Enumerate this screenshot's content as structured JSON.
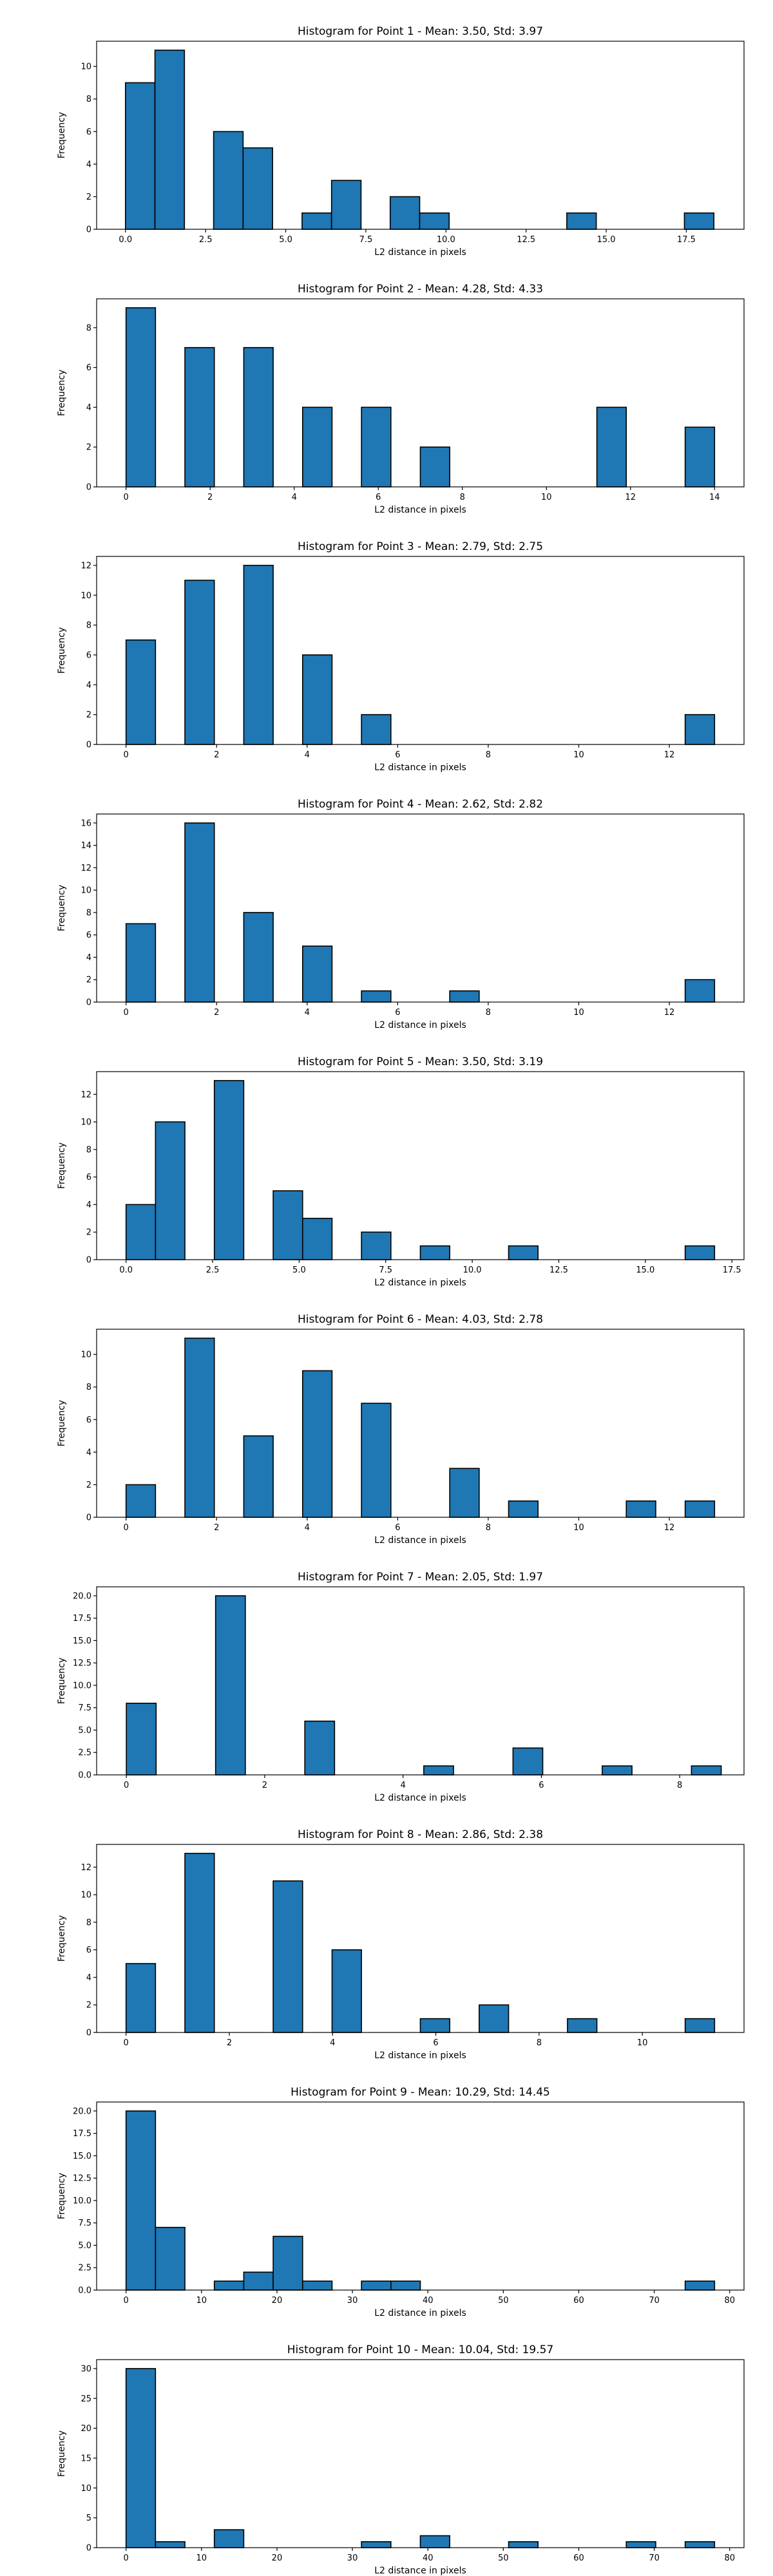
{
  "figure": {
    "background": "#ffffff",
    "bar_color": "#1f77b4",
    "edge_color": "#000000"
  },
  "chart_data": [
    {
      "type": "bar",
      "title": "Histogram for Point 1 - Mean: 3.50, Std: 3.97",
      "xlabel": "L2 distance in pixels",
      "ylabel": "Frequency",
      "xlim": [
        -0.9,
        19.3
      ],
      "ylim": [
        0,
        11.55
      ],
      "xticks": [
        0.0,
        2.5,
        5.0,
        7.5,
        10.0,
        12.5,
        15.0,
        17.5
      ],
      "xtick_labels": [
        "0.0",
        "2.5",
        "5.0",
        "7.5",
        "10.0",
        "12.5",
        "15.0",
        "17.5"
      ],
      "yticks": [
        0,
        2,
        4,
        6,
        8,
        10
      ],
      "ytick_labels": [
        "0",
        "2",
        "4",
        "6",
        "8",
        "10"
      ],
      "bins": [
        [
          0.0,
          0.92
        ],
        [
          0.92,
          1.84
        ],
        [
          2.75,
          3.67
        ],
        [
          3.67,
          4.59
        ],
        [
          5.51,
          6.43
        ],
        [
          6.43,
          7.35
        ],
        [
          8.26,
          9.18
        ],
        [
          9.18,
          10.1
        ],
        [
          13.77,
          14.69
        ],
        [
          17.44,
          18.36
        ]
      ],
      "values": [
        9,
        11,
        6,
        5,
        1,
        3,
        2,
        1,
        1,
        1
      ]
    },
    {
      "type": "bar",
      "title": "Histogram for Point 2 - Mean: 4.28, Std: 4.33",
      "xlabel": "L2 distance in pixels",
      "ylabel": "Frequency",
      "xlim": [
        -0.7,
        14.7
      ],
      "ylim": [
        0,
        9.45
      ],
      "xticks": [
        0,
        2,
        4,
        6,
        8,
        10,
        12,
        14
      ],
      "xtick_labels": [
        "0",
        "2",
        "4",
        "6",
        "8",
        "10",
        "12",
        "14"
      ],
      "yticks": [
        0,
        2,
        4,
        6,
        8
      ],
      "ytick_labels": [
        "0",
        "2",
        "4",
        "6",
        "8"
      ],
      "bins": [
        [
          0.0,
          0.7
        ],
        [
          1.4,
          2.1
        ],
        [
          2.8,
          3.5
        ],
        [
          4.2,
          4.9
        ],
        [
          5.6,
          6.3
        ],
        [
          7.0,
          7.7
        ],
        [
          11.2,
          11.9
        ],
        [
          13.3,
          14.0
        ]
      ],
      "values": [
        9,
        7,
        7,
        4,
        4,
        2,
        4,
        3
      ]
    },
    {
      "type": "bar",
      "title": "Histogram for Point 3 - Mean: 2.79, Std: 2.75",
      "xlabel": "L2 distance in pixels",
      "ylabel": "Frequency",
      "xlim": [
        -0.65,
        13.65
      ],
      "ylim": [
        0,
        12.6
      ],
      "xticks": [
        0,
        2,
        4,
        6,
        8,
        10,
        12
      ],
      "xtick_labels": [
        "0",
        "2",
        "4",
        "6",
        "8",
        "10",
        "12"
      ],
      "yticks": [
        0,
        2,
        4,
        6,
        8,
        10,
        12
      ],
      "ytick_labels": [
        "0",
        "2",
        "4",
        "6",
        "8",
        "10",
        "12"
      ],
      "bins": [
        [
          0.0,
          0.65
        ],
        [
          1.3,
          1.95
        ],
        [
          2.6,
          3.25
        ],
        [
          3.9,
          4.55
        ],
        [
          5.2,
          5.85
        ],
        [
          12.35,
          13.0
        ]
      ],
      "values": [
        7,
        11,
        12,
        6,
        2,
        2
      ]
    },
    {
      "type": "bar",
      "title": "Histogram for Point 4 - Mean: 2.62, Std: 2.82",
      "xlabel": "L2 distance in pixels",
      "ylabel": "Frequency",
      "xlim": [
        -0.65,
        13.65
      ],
      "ylim": [
        0,
        16.8
      ],
      "xticks": [
        0,
        2,
        4,
        6,
        8,
        10,
        12
      ],
      "xtick_labels": [
        "0",
        "2",
        "4",
        "6",
        "8",
        "10",
        "12"
      ],
      "yticks": [
        0,
        2,
        4,
        6,
        8,
        10,
        12,
        14,
        16
      ],
      "ytick_labels": [
        "0",
        "2",
        "4",
        "6",
        "8",
        "10",
        "12",
        "14",
        "16"
      ],
      "bins": [
        [
          0.0,
          0.65
        ],
        [
          1.3,
          1.95
        ],
        [
          2.6,
          3.25
        ],
        [
          3.9,
          4.55
        ],
        [
          5.2,
          5.85
        ],
        [
          7.15,
          7.8
        ],
        [
          12.35,
          13.0
        ]
      ],
      "values": [
        7,
        16,
        8,
        5,
        1,
        1,
        2
      ]
    },
    {
      "type": "bar",
      "title": "Histogram for Point 5 - Mean: 3.50, Std: 3.19",
      "xlabel": "L2 distance in pixels",
      "ylabel": "Frequency",
      "xlim": [
        -0.85,
        17.85
      ],
      "ylim": [
        0,
        13.65
      ],
      "xticks": [
        0.0,
        2.5,
        5.0,
        7.5,
        10.0,
        12.5,
        15.0,
        17.5
      ],
      "xtick_labels": [
        "0.0",
        "2.5",
        "5.0",
        "7.5",
        "10.0",
        "12.5",
        "15.0",
        "17.5"
      ],
      "yticks": [
        0,
        2,
        4,
        6,
        8,
        10,
        12
      ],
      "ytick_labels": [
        "0",
        "2",
        "4",
        "6",
        "8",
        "10",
        "12"
      ],
      "bins": [
        [
          0.0,
          0.85
        ],
        [
          0.85,
          1.7
        ],
        [
          2.55,
          3.4
        ],
        [
          4.25,
          5.1
        ],
        [
          5.1,
          5.95
        ],
        [
          6.8,
          7.65
        ],
        [
          8.5,
          9.35
        ],
        [
          11.05,
          11.9
        ],
        [
          16.15,
          17.0
        ]
      ],
      "values": [
        4,
        10,
        13,
        5,
        3,
        2,
        1,
        1,
        1
      ]
    },
    {
      "type": "bar",
      "title": "Histogram for Point 6 - Mean: 4.03, Std: 2.78",
      "xlabel": "L2 distance in pixels",
      "ylabel": "Frequency",
      "xlim": [
        -0.65,
        13.65
      ],
      "ylim": [
        0,
        11.55
      ],
      "xticks": [
        0,
        2,
        4,
        6,
        8,
        10,
        12
      ],
      "xtick_labels": [
        "0",
        "2",
        "4",
        "6",
        "8",
        "10",
        "12"
      ],
      "yticks": [
        0,
        2,
        4,
        6,
        8,
        10
      ],
      "ytick_labels": [
        "0",
        "2",
        "4",
        "6",
        "8",
        "10"
      ],
      "bins": [
        [
          0.0,
          0.65
        ],
        [
          1.3,
          1.95
        ],
        [
          2.6,
          3.25
        ],
        [
          3.9,
          4.55
        ],
        [
          5.2,
          5.85
        ],
        [
          7.15,
          7.8
        ],
        [
          8.45,
          9.1
        ],
        [
          11.05,
          11.7
        ],
        [
          12.35,
          13.0
        ]
      ],
      "values": [
        2,
        11,
        5,
        9,
        7,
        3,
        1,
        1,
        1
      ]
    },
    {
      "type": "bar",
      "title": "Histogram for Point 7 - Mean: 2.05, Std: 1.97",
      "xlabel": "L2 distance in pixels",
      "ylabel": "Frequency",
      "xlim": [
        -0.43,
        8.93
      ],
      "ylim": [
        0,
        21.0
      ],
      "xticks": [
        0,
        2,
        4,
        6,
        8
      ],
      "xtick_labels": [
        "0",
        "2",
        "4",
        "6",
        "8"
      ],
      "yticks": [
        0.0,
        2.5,
        5.0,
        7.5,
        10.0,
        12.5,
        15.0,
        17.5,
        20.0
      ],
      "ytick_labels": [
        "0.0",
        "2.5",
        "5.0",
        "7.5",
        "10.0",
        "12.5",
        "15.0",
        "17.5",
        "20.0"
      ],
      "bins": [
        [
          0.0,
          0.43
        ],
        [
          1.29,
          1.72
        ],
        [
          2.58,
          3.01
        ],
        [
          4.3,
          4.73
        ],
        [
          5.59,
          6.02
        ],
        [
          6.88,
          7.31
        ],
        [
          8.17,
          8.6
        ]
      ],
      "values": [
        8,
        20,
        6,
        1,
        3,
        1,
        1
      ]
    },
    {
      "type": "bar",
      "title": "Histogram for Point 8 - Mean: 2.86, Std: 2.38",
      "xlabel": "L2 distance in pixels",
      "ylabel": "Frequency",
      "xlim": [
        -0.57,
        11.97
      ],
      "ylim": [
        0,
        13.65
      ],
      "xticks": [
        0,
        2,
        4,
        6,
        8,
        10
      ],
      "xtick_labels": [
        "0",
        "2",
        "4",
        "6",
        "8",
        "10"
      ],
      "yticks": [
        0,
        2,
        4,
        6,
        8,
        10,
        12
      ],
      "ytick_labels": [
        "0",
        "2",
        "4",
        "6",
        "8",
        "10",
        "12"
      ],
      "bins": [
        [
          0.0,
          0.57
        ],
        [
          1.14,
          1.71
        ],
        [
          2.85,
          3.42
        ],
        [
          3.99,
          4.56
        ],
        [
          5.7,
          6.27
        ],
        [
          6.84,
          7.41
        ],
        [
          8.55,
          9.12
        ],
        [
          10.83,
          11.4
        ]
      ],
      "values": [
        5,
        13,
        11,
        6,
        1,
        2,
        1,
        1
      ]
    },
    {
      "type": "bar",
      "title": "Histogram for Point 9 - Mean: 10.29, Std: 14.45",
      "xlabel": "L2 distance in pixels",
      "ylabel": "Frequency",
      "xlim": [
        -3.9,
        81.9
      ],
      "ylim": [
        0,
        21.0
      ],
      "xticks": [
        0,
        10,
        20,
        30,
        40,
        50,
        60,
        70,
        80
      ],
      "xtick_labels": [
        "0",
        "10",
        "20",
        "30",
        "40",
        "50",
        "60",
        "70",
        "80"
      ],
      "yticks": [
        0.0,
        2.5,
        5.0,
        7.5,
        10.0,
        12.5,
        15.0,
        17.5,
        20.0
      ],
      "ytick_labels": [
        "0.0",
        "2.5",
        "5.0",
        "7.5",
        "10.0",
        "12.5",
        "15.0",
        "17.5",
        "20.0"
      ],
      "bins": [
        [
          0.0,
          3.9
        ],
        [
          3.9,
          7.8
        ],
        [
          11.7,
          15.6
        ],
        [
          15.6,
          19.5
        ],
        [
          19.5,
          23.4
        ],
        [
          23.4,
          27.3
        ],
        [
          31.2,
          35.1
        ],
        [
          35.1,
          39.0
        ],
        [
          74.1,
          78.0
        ]
      ],
      "values": [
        20,
        7,
        1,
        2,
        6,
        1,
        1,
        1,
        1
      ]
    },
    {
      "type": "bar",
      "title": "Histogram for Point 10 - Mean: 10.04, Std: 19.57",
      "xlabel": "L2 distance in pixels",
      "ylabel": "Frequency",
      "xlim": [
        -3.9,
        81.9
      ],
      "ylim": [
        0,
        31.5
      ],
      "xticks": [
        0,
        10,
        20,
        30,
        40,
        50,
        60,
        70,
        80
      ],
      "xtick_labels": [
        "0",
        "10",
        "20",
        "30",
        "40",
        "50",
        "60",
        "70",
        "80"
      ],
      "yticks": [
        0,
        5,
        10,
        15,
        20,
        25,
        30
      ],
      "ytick_labels": [
        "0",
        "5",
        "10",
        "15",
        "20",
        "25",
        "30"
      ],
      "bins": [
        [
          0.0,
          3.9
        ],
        [
          3.9,
          7.8
        ],
        [
          11.7,
          15.6
        ],
        [
          31.2,
          35.1
        ],
        [
          39.0,
          42.9
        ],
        [
          50.7,
          54.6
        ],
        [
          66.3,
          70.2
        ],
        [
          74.1,
          78.0
        ]
      ],
      "values": [
        30,
        1,
        3,
        1,
        2,
        1,
        1,
        1
      ]
    }
  ]
}
